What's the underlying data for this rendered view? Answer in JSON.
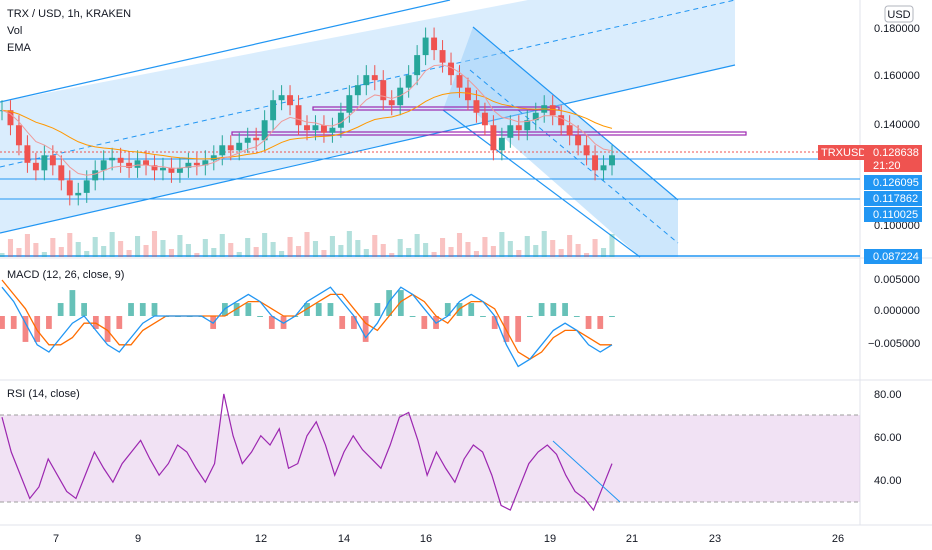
{
  "header": {
    "title": "TRX / USD, 1h, KRAKEN",
    "indicators": [
      "Vol",
      "EMA"
    ],
    "currency_badge": "USD"
  },
  "price_axis": {
    "ticks": [
      "0.180000",
      "0.160000",
      "0.140000",
      "0.100000"
    ]
  },
  "price_tags": [
    {
      "label": "TRXUSD",
      "value": "0.128638",
      "sub": "21:20",
      "color": "#ef5350"
    },
    {
      "value": "0.126095",
      "color": "#2196f3"
    },
    {
      "value": "0.117862",
      "color": "#2196f3"
    },
    {
      "value": "0.110025",
      "color": "#2196f3"
    },
    {
      "value": "0.087224",
      "color": "#2196f3"
    }
  ],
  "macd": {
    "label": "MACD (12, 26, close, 9)",
    "ticks": [
      "0.005000",
      "0.000000",
      "−0.005000"
    ],
    "colors": {
      "macd": "#2196f3",
      "signal": "#ff6d00",
      "hist_pos": "#26a69a",
      "hist_neg": "#ef5350"
    }
  },
  "rsi": {
    "label": "RSI (14, close)",
    "ticks": [
      "80.00",
      "60.00",
      "40.00"
    ],
    "color": "#9c27b0",
    "band": [
      30,
      70
    ]
  },
  "time_axis": {
    "ticks": [
      "7",
      "9",
      "12",
      "14",
      "16",
      "19",
      "21",
      "23",
      "26"
    ]
  },
  "chart_data": [
    {
      "type": "candlestick",
      "symbol": "TRXUSD",
      "exchange": "KRAKEN",
      "interval": "1h",
      "y_range": [
        0.087,
        0.19
      ],
      "x_dates": [
        "7",
        "9",
        "12",
        "14",
        "16",
        "19",
        "21",
        "23",
        "26"
      ],
      "series_close": [
        0.146,
        0.14,
        0.132,
        0.125,
        0.122,
        0.128,
        0.124,
        0.118,
        0.112,
        0.113,
        0.118,
        0.122,
        0.126,
        0.127,
        0.125,
        0.123,
        0.126,
        0.124,
        0.122,
        0.123,
        0.121,
        0.123,
        0.125,
        0.124,
        0.126,
        0.128,
        0.132,
        0.13,
        0.133,
        0.135,
        0.134,
        0.142,
        0.15,
        0.152,
        0.148,
        0.14,
        0.138,
        0.14,
        0.137,
        0.139,
        0.145,
        0.152,
        0.156,
        0.16,
        0.158,
        0.15,
        0.148,
        0.155,
        0.16,
        0.168,
        0.175,
        0.17,
        0.165,
        0.16,
        0.155,
        0.15,
        0.145,
        0.14,
        0.13,
        0.135,
        0.14,
        0.138,
        0.142,
        0.145,
        0.148,
        0.144,
        0.14,
        0.136,
        0.132,
        0.128,
        0.122,
        0.124,
        0.128
      ],
      "horizontal_levels": [
        0.126095,
        0.117862,
        0.110025,
        0.087224
      ],
      "last_price": 0.128638
    },
    {
      "type": "line",
      "name": "MACD (12, 26, close, 9)",
      "y_range": [
        -0.0075,
        0.0075
      ],
      "series": [
        {
          "name": "MACD",
          "values": [
            0.004,
            0.002,
            -0.001,
            -0.004,
            -0.005,
            -0.003,
            -0.001,
            0.0,
            -0.002,
            -0.004,
            -0.005,
            -0.003,
            -0.001,
            0.0,
            0.0,
            0.0,
            0.0,
            0.0,
            -0.001,
            0.001,
            0.002,
            0.003,
            0.002,
            0.0,
            -0.001,
            0.0,
            0.002,
            0.003,
            0.004,
            0.002,
            0.0,
            -0.003,
            -0.001,
            0.002,
            0.004,
            0.003,
            0.001,
            -0.001,
            0.0,
            0.002,
            0.003,
            0.002,
            0.0,
            -0.004,
            -0.007,
            -0.006,
            -0.004,
            -0.002,
            -0.001,
            -0.002,
            -0.004,
            -0.005,
            -0.004
          ]
        },
        {
          "name": "Signal",
          "values": [
            0.005,
            0.003,
            0.001,
            -0.002,
            -0.004,
            -0.004,
            -0.003,
            -0.001,
            -0.001,
            -0.002,
            -0.004,
            -0.004,
            -0.002,
            -0.001,
            0.0,
            0.0,
            0.0,
            0.0,
            0.0,
            0.0,
            0.001,
            0.002,
            0.002,
            0.001,
            0.0,
            0.0,
            0.001,
            0.002,
            0.003,
            0.003,
            0.001,
            -0.001,
            -0.002,
            0.0,
            0.002,
            0.003,
            0.002,
            0.0,
            -0.001,
            0.001,
            0.002,
            0.002,
            0.001,
            -0.002,
            -0.005,
            -0.006,
            -0.005,
            -0.003,
            -0.002,
            -0.002,
            -0.003,
            -0.004,
            -0.004
          ]
        }
      ]
    },
    {
      "type": "line",
      "name": "RSI (14, close)",
      "y_range": [
        24,
        86
      ],
      "band": [
        30,
        70
      ],
      "series": [
        {
          "name": "RSI",
          "values": [
            70,
            55,
            45,
            35,
            40,
            52,
            45,
            38,
            35,
            45,
            55,
            48,
            42,
            50,
            55,
            60,
            52,
            45,
            50,
            58,
            55,
            48,
            42,
            50,
            80,
            62,
            50,
            55,
            62,
            58,
            65,
            48,
            50,
            62,
            68,
            58,
            45,
            55,
            62,
            56,
            52,
            48,
            58,
            70,
            72,
            60,
            45,
            55,
            48,
            42,
            52,
            58,
            55,
            45,
            32,
            30,
            40,
            50,
            55,
            58,
            54,
            45,
            38,
            35,
            30,
            40,
            50
          ]
        }
      ]
    }
  ]
}
